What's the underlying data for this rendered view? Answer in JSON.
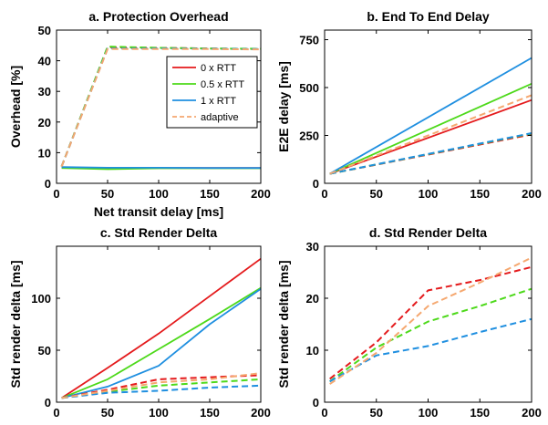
{
  "colors": {
    "red": "#e41a1c",
    "green": "#4dd91a",
    "blue": "#1f8fe0",
    "orange": "#f5a870"
  },
  "legend_labels": [
    "0 x RTT",
    "0.5 x RTT",
    "1 x RTT",
    "adaptive"
  ],
  "chart_data": [
    {
      "type": "line",
      "title": "a. Protection Overhead",
      "xlabel": "Net transit delay [ms]",
      "ylabel": "Overhead [%]",
      "xlim": [
        0,
        200
      ],
      "ylim": [
        0,
        50
      ],
      "xticks": [
        0,
        50,
        100,
        150,
        200
      ],
      "yticks": [
        0,
        10,
        20,
        30,
        40,
        50
      ],
      "legend": "top-right",
      "series": [
        {
          "name": "0 x RTT",
          "color": "red",
          "dash": "solid",
          "x": [
            5,
            50,
            100,
            150,
            200
          ],
          "y": [
            5.2,
            4.9,
            5.0,
            5.0,
            5.0
          ]
        },
        {
          "name": "0.5 x RTT",
          "color": "green",
          "dash": "solid",
          "x": [
            5,
            50,
            100,
            150,
            200
          ],
          "y": [
            5.0,
            4.6,
            4.9,
            4.9,
            4.9
          ]
        },
        {
          "name": "1 x RTT",
          "color": "blue",
          "dash": "solid",
          "x": [
            5,
            50,
            100,
            150,
            200
          ],
          "y": [
            5.3,
            5.1,
            5.1,
            5.0,
            5.0
          ]
        },
        {
          "name": "0 x RTT",
          "color": "red",
          "dash": "dashed",
          "x": [
            5,
            50,
            100,
            150,
            200
          ],
          "y": [
            5.5,
            44.4,
            44.2,
            44.0,
            43.8
          ]
        },
        {
          "name": "0.5 x RTT",
          "color": "green",
          "dash": "dashed",
          "x": [
            5,
            50,
            100,
            150,
            200
          ],
          "y": [
            5.5,
            44.6,
            44.2,
            44.0,
            43.9
          ]
        },
        {
          "name": "1 x RTT",
          "color": "blue",
          "dash": "dashed",
          "x": [
            5,
            50,
            100,
            150,
            200
          ],
          "y": [
            5.5,
            44.0,
            44.0,
            43.9,
            43.8
          ]
        },
        {
          "name": "adaptive",
          "color": "orange",
          "dash": "dashed",
          "x": [
            5,
            50,
            100,
            150,
            200
          ],
          "y": [
            5.5,
            43.8,
            43.8,
            43.8,
            43.7
          ]
        }
      ]
    },
    {
      "type": "line",
      "title": "b. End To End Delay",
      "xlabel": "",
      "ylabel": "E2E delay [ms]",
      "xlim": [
        0,
        200
      ],
      "ylim": [
        0,
        800
      ],
      "xticks": [
        0,
        50,
        100,
        150,
        200
      ],
      "yticks": [
        0,
        250,
        500,
        750
      ],
      "series": [
        {
          "name": "0 x RTT",
          "color": "red",
          "dash": "solid",
          "x": [
            5,
            200
          ],
          "y": [
            50,
            435
          ]
        },
        {
          "name": "0.5 x RTT",
          "color": "green",
          "dash": "solid",
          "x": [
            5,
            200
          ],
          "y": [
            50,
            520
          ]
        },
        {
          "name": "1 x RTT",
          "color": "blue",
          "dash": "solid",
          "x": [
            5,
            200
          ],
          "y": [
            50,
            655
          ]
        },
        {
          "name": "0 x RTT",
          "color": "red",
          "dash": "dashed",
          "x": [
            5,
            200
          ],
          "y": [
            50,
            255
          ]
        },
        {
          "name": "0.5 x RTT",
          "color": "green",
          "dash": "dashed",
          "x": [
            5,
            200
          ],
          "y": [
            50,
            260
          ]
        },
        {
          "name": "1 x RTT",
          "color": "blue",
          "dash": "dashed",
          "x": [
            5,
            200
          ],
          "y": [
            50,
            262
          ]
        },
        {
          "name": "adaptive",
          "color": "orange",
          "dash": "dashed",
          "x": [
            5,
            200
          ],
          "y": [
            50,
            460
          ]
        }
      ]
    },
    {
      "type": "line",
      "title": "c. Std Render Delta",
      "xlabel": "",
      "ylabel": "Std render delta [ms]",
      "xlim": [
        0,
        200
      ],
      "ylim": [
        0,
        150
      ],
      "xticks": [
        0,
        50,
        100,
        150,
        200
      ],
      "yticks": [
        0,
        50,
        100
      ],
      "series": [
        {
          "name": "0 x RTT",
          "color": "red",
          "dash": "solid",
          "x": [
            5,
            50,
            100,
            150,
            200
          ],
          "y": [
            4,
            33,
            66,
            102,
            138
          ]
        },
        {
          "name": "0.5 x RTT",
          "color": "green",
          "dash": "solid",
          "x": [
            5,
            50,
            100,
            150,
            200
          ],
          "y": [
            4,
            22,
            51,
            80,
            110
          ]
        },
        {
          "name": "1 x RTT",
          "color": "blue",
          "dash": "solid",
          "x": [
            5,
            50,
            100,
            150,
            200
          ],
          "y": [
            4,
            15,
            35,
            75,
            109
          ]
        },
        {
          "name": "0 x RTT",
          "color": "red",
          "dash": "dashed",
          "x": [
            5,
            50,
            100,
            150,
            200
          ],
          "y": [
            4,
            12,
            22,
            24,
            26
          ]
        },
        {
          "name": "0.5 x RTT",
          "color": "green",
          "dash": "dashed",
          "x": [
            5,
            50,
            100,
            150,
            200
          ],
          "y": [
            4,
            10,
            16,
            19,
            22
          ]
        },
        {
          "name": "1 x RTT",
          "color": "blue",
          "dash": "dashed",
          "x": [
            5,
            50,
            100,
            150,
            200
          ],
          "y": [
            4,
            9,
            11,
            14,
            16
          ]
        },
        {
          "name": "adaptive",
          "color": "orange",
          "dash": "dashed",
          "x": [
            5,
            50,
            100,
            150,
            200
          ],
          "y": [
            4,
            11,
            19,
            22,
            28
          ]
        }
      ]
    },
    {
      "type": "line",
      "title": "d. Std Render Delta",
      "xlabel": "",
      "ylabel": "Std render delta [ms]",
      "xlim": [
        0,
        200
      ],
      "ylim": [
        0,
        30
      ],
      "xticks": [
        0,
        50,
        100,
        150,
        200
      ],
      "yticks": [
        0,
        10,
        20,
        30
      ],
      "series": [
        {
          "name": "0 x RTT",
          "color": "red",
          "dash": "dashed",
          "x": [
            5,
            50,
            100,
            150,
            200
          ],
          "y": [
            4.5,
            11.5,
            21.5,
            23.5,
            26.0
          ]
        },
        {
          "name": "0.5 x RTT",
          "color": "green",
          "dash": "dashed",
          "x": [
            5,
            50,
            100,
            150,
            200
          ],
          "y": [
            4.0,
            10.5,
            15.5,
            18.5,
            21.8
          ]
        },
        {
          "name": "1 x RTT",
          "color": "blue",
          "dash": "dashed",
          "x": [
            5,
            50,
            100,
            150,
            200
          ],
          "y": [
            4.0,
            9.0,
            10.8,
            13.5,
            16.0
          ]
        },
        {
          "name": "adaptive",
          "color": "orange",
          "dash": "dashed",
          "x": [
            5,
            50,
            100,
            150,
            200
          ],
          "y": [
            3.5,
            9.5,
            18.5,
            23.0,
            27.8
          ]
        }
      ]
    }
  ]
}
